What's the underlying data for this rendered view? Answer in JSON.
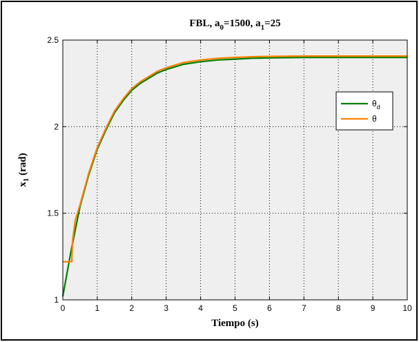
{
  "chart_data": {
    "type": "line",
    "title": "FBL, a0=1500,  a1=25",
    "title_parts": {
      "prefix": "FBL, a",
      "sub0": "0",
      "mid": "=1500,  a",
      "sub1": "1",
      "suffix": "=25"
    },
    "xlabel": "Tiempo (s)",
    "ylabel": "x1 (rad)",
    "ylabel_parts": {
      "base": "x",
      "sub": "1",
      "suffix": " (rad)"
    },
    "xlim": [
      0,
      10
    ],
    "ylim": [
      1,
      2.5
    ],
    "xticks": [
      0,
      1,
      2,
      3,
      4,
      5,
      6,
      7,
      8,
      9,
      10
    ],
    "yticks": [
      1,
      1.5,
      2,
      2.5
    ],
    "ytick_labels": [
      "1",
      "1.5",
      "2",
      "2.5"
    ],
    "grid": true,
    "legend_position": "right",
    "series": [
      {
        "name": "θd",
        "name_parts": {
          "base": "θ",
          "sub": "d"
        },
        "color": "#007f00",
        "x": [
          0,
          0.25,
          0.5,
          0.75,
          1,
          1.25,
          1.5,
          1.75,
          2,
          2.25,
          2.5,
          2.75,
          3,
          3.5,
          4,
          4.5,
          5,
          5.5,
          6,
          7,
          8,
          9,
          10
        ],
        "y": [
          1.02,
          1.295,
          1.54,
          1.72,
          1.87,
          1.98,
          2.08,
          2.15,
          2.21,
          2.25,
          2.28,
          2.31,
          2.33,
          2.36,
          2.375,
          2.385,
          2.39,
          2.395,
          2.397,
          2.4,
          2.4,
          2.4,
          2.4
        ]
      },
      {
        "name": "θ",
        "name_parts": {
          "base": "θ",
          "sub": ""
        },
        "color": "#ff8000",
        "x": [
          0,
          0.26,
          0.28,
          0.36,
          0.5,
          0.75,
          1,
          1.25,
          1.5,
          1.75,
          2,
          2.25,
          2.5,
          2.75,
          3,
          3.5,
          4,
          4.5,
          5,
          5.5,
          6,
          7,
          8,
          9,
          10
        ],
        "y": [
          1.22,
          1.22,
          1.34,
          1.46,
          1.55,
          1.73,
          1.88,
          1.99,
          2.09,
          2.16,
          2.22,
          2.26,
          2.29,
          2.32,
          2.34,
          2.37,
          2.385,
          2.395,
          2.4,
          2.404,
          2.406,
          2.408,
          2.408,
          2.408,
          2.408
        ]
      }
    ]
  }
}
